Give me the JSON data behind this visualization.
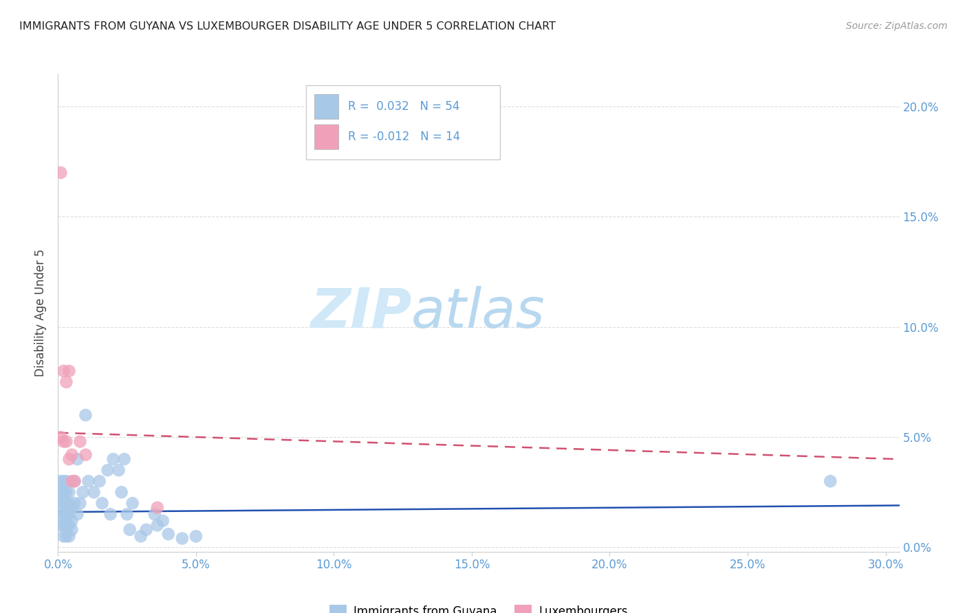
{
  "title": "IMMIGRANTS FROM GUYANA VS LUXEMBOURGER DISABILITY AGE UNDER 5 CORRELATION CHART",
  "source": "Source: ZipAtlas.com",
  "ylabel": "Disability Age Under 5",
  "xlim": [
    0.0,
    0.305
  ],
  "ylim": [
    -0.002,
    0.215
  ],
  "xtick_vals": [
    0.0,
    0.05,
    0.1,
    0.15,
    0.2,
    0.25,
    0.3
  ],
  "xtick_labels": [
    "0.0%",
    "5.0%",
    "10.0%",
    "15.0%",
    "20.0%",
    "25.0%",
    "30.0%"
  ],
  "ytick_vals": [
    0.0,
    0.05,
    0.1,
    0.15,
    0.2
  ],
  "ytick_labels": [
    "0.0%",
    "5.0%",
    "10.0%",
    "15.0%",
    "20.0%"
  ],
  "legend1_R": "0.032",
  "legend1_N": "54",
  "legend2_R": "-0.012",
  "legend2_N": "14",
  "guyana_color": "#a8c8e8",
  "luxembourger_color": "#f0a0b8",
  "trendline_guyana_color": "#2050b0",
  "trendline_lux_color": "#d05070",
  "tick_color": "#5b9bd5",
  "axis_color": "#cccccc",
  "grid_color": "#dddddd",
  "watermark_color": "#d0e8f8",
  "guyana_x": [
    0.001,
    0.001,
    0.001,
    0.001,
    0.001,
    0.002,
    0.002,
    0.002,
    0.002,
    0.002,
    0.002,
    0.003,
    0.003,
    0.003,
    0.003,
    0.003,
    0.003,
    0.004,
    0.004,
    0.004,
    0.004,
    0.004,
    0.005,
    0.005,
    0.005,
    0.006,
    0.006,
    0.007,
    0.007,
    0.008,
    0.009,
    0.01,
    0.011,
    0.013,
    0.015,
    0.016,
    0.018,
    0.019,
    0.02,
    0.022,
    0.023,
    0.024,
    0.025,
    0.026,
    0.027,
    0.03,
    0.032,
    0.035,
    0.036,
    0.038,
    0.04,
    0.045,
    0.05,
    0.28
  ],
  "guyana_y": [
    0.01,
    0.015,
    0.02,
    0.025,
    0.03,
    0.005,
    0.01,
    0.015,
    0.02,
    0.025,
    0.03,
    0.005,
    0.01,
    0.015,
    0.02,
    0.025,
    0.03,
    0.005,
    0.01,
    0.015,
    0.02,
    0.025,
    0.008,
    0.012,
    0.018,
    0.02,
    0.03,
    0.015,
    0.04,
    0.02,
    0.025,
    0.06,
    0.03,
    0.025,
    0.03,
    0.02,
    0.035,
    0.015,
    0.04,
    0.035,
    0.025,
    0.04,
    0.015,
    0.008,
    0.02,
    0.005,
    0.008,
    0.015,
    0.01,
    0.012,
    0.006,
    0.004,
    0.005,
    0.03
  ],
  "lux_x": [
    0.001,
    0.001,
    0.002,
    0.002,
    0.003,
    0.003,
    0.004,
    0.004,
    0.005,
    0.005,
    0.006,
    0.008,
    0.01,
    0.036
  ],
  "lux_y": [
    0.17,
    0.05,
    0.08,
    0.048,
    0.075,
    0.048,
    0.08,
    0.04,
    0.042,
    0.03,
    0.03,
    0.048,
    0.042,
    0.018
  ],
  "guyana_trendline_x": [
    0.0,
    0.305
  ],
  "guyana_trendline_y": [
    0.016,
    0.019
  ],
  "lux_trendline_x": [
    0.0,
    0.305
  ],
  "lux_trendline_y": [
    0.052,
    0.04
  ]
}
